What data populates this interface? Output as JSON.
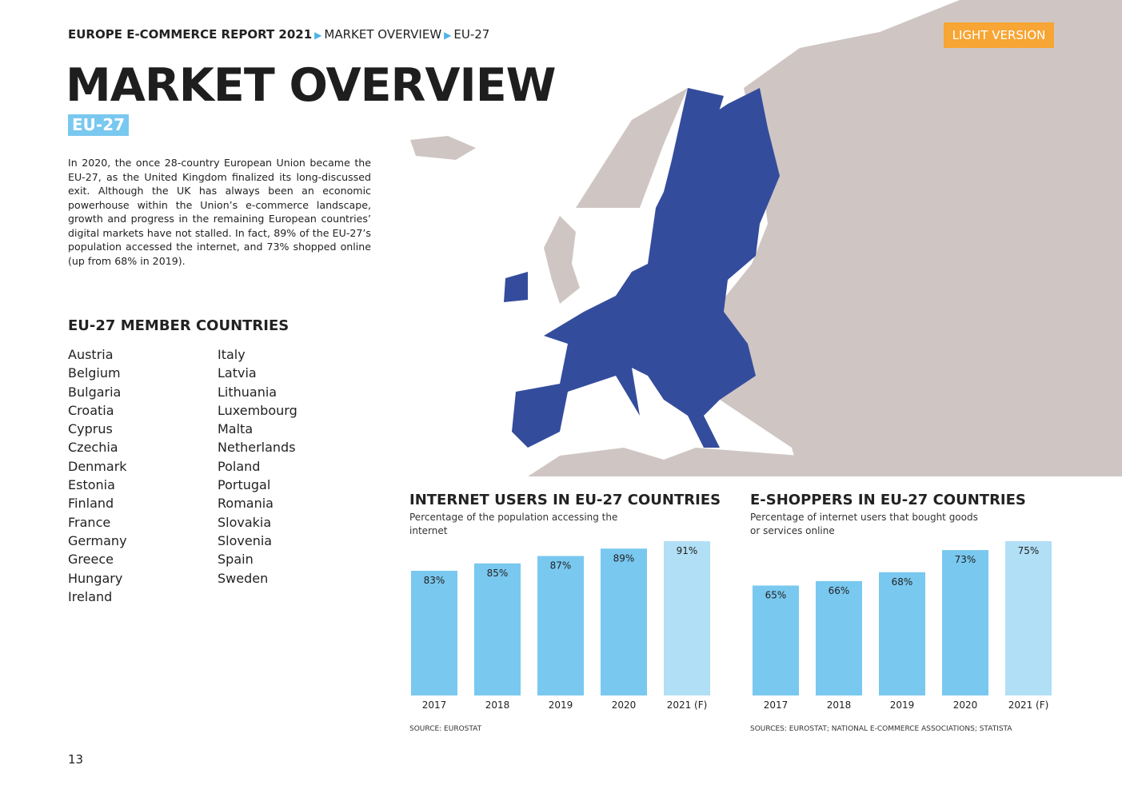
{
  "header": {
    "breadcrumb": [
      "EUROPE E-COMMERCE REPORT 2021",
      "MARKET OVERVIEW",
      "EU-27"
    ],
    "badge": "LIGHT VERSION"
  },
  "title": "MARKET OVERVIEW",
  "tag": "EU-27",
  "intro": "In 2020, the once 28-country European Union became the EU-27, as the United Kingdom finalized its long-discussed exit. Although the UK has always been an economic powerhouse within the Union’s e-commerce landscape, growth and progress in the remaining European countries’ digital markets have not stalled. In fact, 89% of the EU-27’s population accessed the internet, and 73% shopped online (up from 68% in 2019).",
  "members": {
    "heading": "EU-27 MEMBER COUNTRIES",
    "columns": [
      [
        "Austria",
        "Belgium",
        "Bulgaria",
        "Croatia",
        "Cyprus",
        "Czechia",
        "Denmark",
        "Estonia",
        "Finland",
        "France",
        "Germany",
        "Greece",
        "Hungary",
        "Ireland"
      ],
      [
        "Italy",
        "Latvia",
        "Lithuania",
        "Luxembourg",
        "Malta",
        "Netherlands",
        "Poland",
        "Portugal",
        "Romania",
        "Slovakia",
        "Slovenia",
        "Spain",
        "Sweden"
      ]
    ]
  },
  "chart_data": [
    {
      "type": "bar",
      "title": "INTERNET USERS IN EU-27 COUNTRIES",
      "subtitle": "Percentage of the population accessing the internet",
      "categories": [
        "2017",
        "2018",
        "2019",
        "2020",
        "2021 (F)"
      ],
      "values": [
        83,
        85,
        87,
        89,
        91
      ],
      "value_labels": [
        "83%",
        "85%",
        "87%",
        "89%",
        "91%"
      ],
      "colors": [
        "#79c8ef",
        "#79c8ef",
        "#79c8ef",
        "#79c8ef",
        "#b1dff5"
      ],
      "ylim": [
        49.3,
        91
      ],
      "source": "SOURCE: EUROSTAT"
    },
    {
      "type": "bar",
      "title": "E-SHOPPERS IN EU-27 COUNTRIES",
      "subtitle": "Percentage of internet users that bought goods or services online",
      "categories": [
        "2017",
        "2018",
        "2019",
        "2020",
        "2021 (F)"
      ],
      "values": [
        65,
        66,
        68,
        73,
        75
      ],
      "value_labels": [
        "65%",
        "66%",
        "68%",
        "73%",
        "75%"
      ],
      "colors": [
        "#79c8ef",
        "#79c8ef",
        "#79c8ef",
        "#79c8ef",
        "#b1dff5"
      ],
      "ylim": [
        40.2,
        75
      ],
      "source": "SOURCES: EUROSTAT; NATIONAL E-COMMERCE ASSOCIATIONS; STATISTA"
    }
  ],
  "page_number": "13"
}
